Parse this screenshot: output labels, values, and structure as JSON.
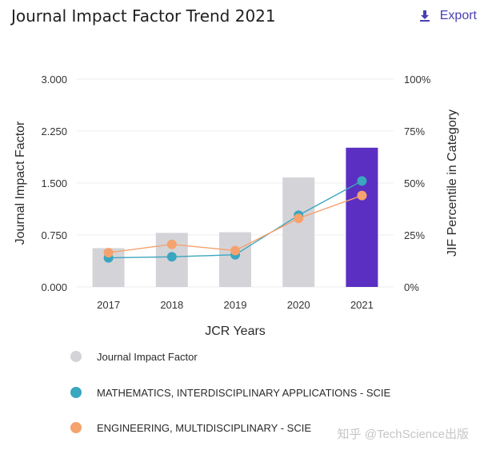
{
  "header": {
    "title": "Journal Impact Factor Trend 2021",
    "export_label": "Export"
  },
  "colors": {
    "jif_bar": "#d4d4d8",
    "jif_bar_current": "#5b2fc2",
    "series_math": "#3aa6bf",
    "series_eng": "#f5a26e",
    "grid": "#ececec",
    "axis_text": "#333333",
    "export": "#4a3fb3"
  },
  "chart_data": {
    "type": "bar",
    "title": "Journal Impact Factor Trend 2021",
    "categories": [
      "2017",
      "2018",
      "2019",
      "2020",
      "2021"
    ],
    "xlabel": "JCR Years",
    "ylabel": "Journal Impact Factor",
    "ylabel_right": "JIF Percentile in Category",
    "ylim": [
      0,
      3
    ],
    "ylim_right": [
      0,
      100
    ],
    "yticks": [
      "0.000",
      "0.750",
      "1.500",
      "2.250",
      "3.000"
    ],
    "yticks_right": [
      "0%",
      "25%",
      "50%",
      "75%",
      "100%"
    ],
    "grid": true,
    "bars": {
      "name": "Journal Impact Factor",
      "values": [
        0.56,
        0.78,
        0.79,
        1.58,
        2.01
      ],
      "highlight_index": 4
    },
    "series": [
      {
        "name": "MATHEMATICS, INTERDISCIPLINARY APPLICATIONS - SCIE",
        "axis": "right",
        "values": [
          14,
          14.5,
          15.5,
          34.5,
          51
        ]
      },
      {
        "name": "ENGINEERING, MULTIDISCIPLINARY - SCIE",
        "axis": "right",
        "values": [
          16.5,
          20.5,
          17.5,
          33,
          44
        ]
      }
    ]
  },
  "legend": {
    "items": [
      {
        "label": "Journal Impact Factor",
        "color": "#d4d4d8"
      },
      {
        "label": "MATHEMATICS, INTERDISCIPLINARY APPLICATIONS - SCIE",
        "color": "#3aa6bf"
      },
      {
        "label": "ENGINEERING, MULTIDISCIPLINARY - SCIE",
        "color": "#f5a26e"
      }
    ]
  },
  "watermark": "知乎 @TechScience出版"
}
